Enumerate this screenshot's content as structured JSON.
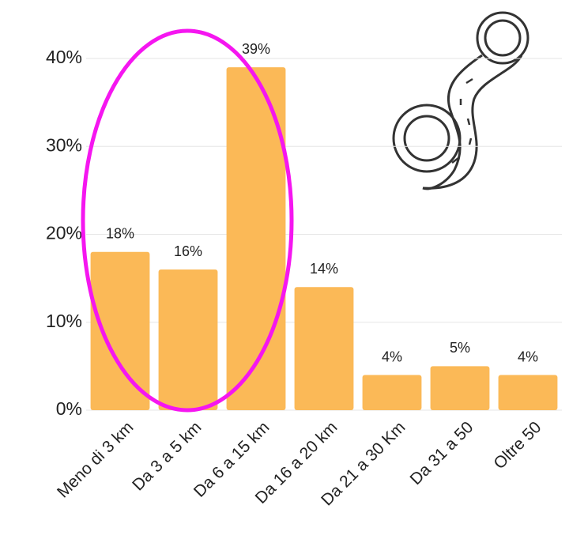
{
  "chart_data": {
    "type": "bar",
    "categories": [
      "Meno di 3 km",
      "Da 3 a 5 km",
      "Da 6 a 15 km",
      "Da 16 a 20 km",
      "Da 21 a 30 Km",
      "Da 31 a 50",
      "Oltre 50"
    ],
    "values": [
      18,
      16,
      39,
      14,
      4,
      5,
      4
    ],
    "value_labels": [
      "18%",
      "16%",
      "39%",
      "14%",
      "4%",
      "5%",
      "4%"
    ],
    "color": "#fbb957",
    "ylim": [
      0,
      40
    ],
    "yticks": [
      {
        "value": 0,
        "label": "0%"
      },
      {
        "value": 10,
        "label": "10%"
      },
      {
        "value": 20,
        "label": "20%"
      },
      {
        "value": 30,
        "label": "30%"
      },
      {
        "value": 40,
        "label": "40%"
      }
    ],
    "grid": true
  }
}
